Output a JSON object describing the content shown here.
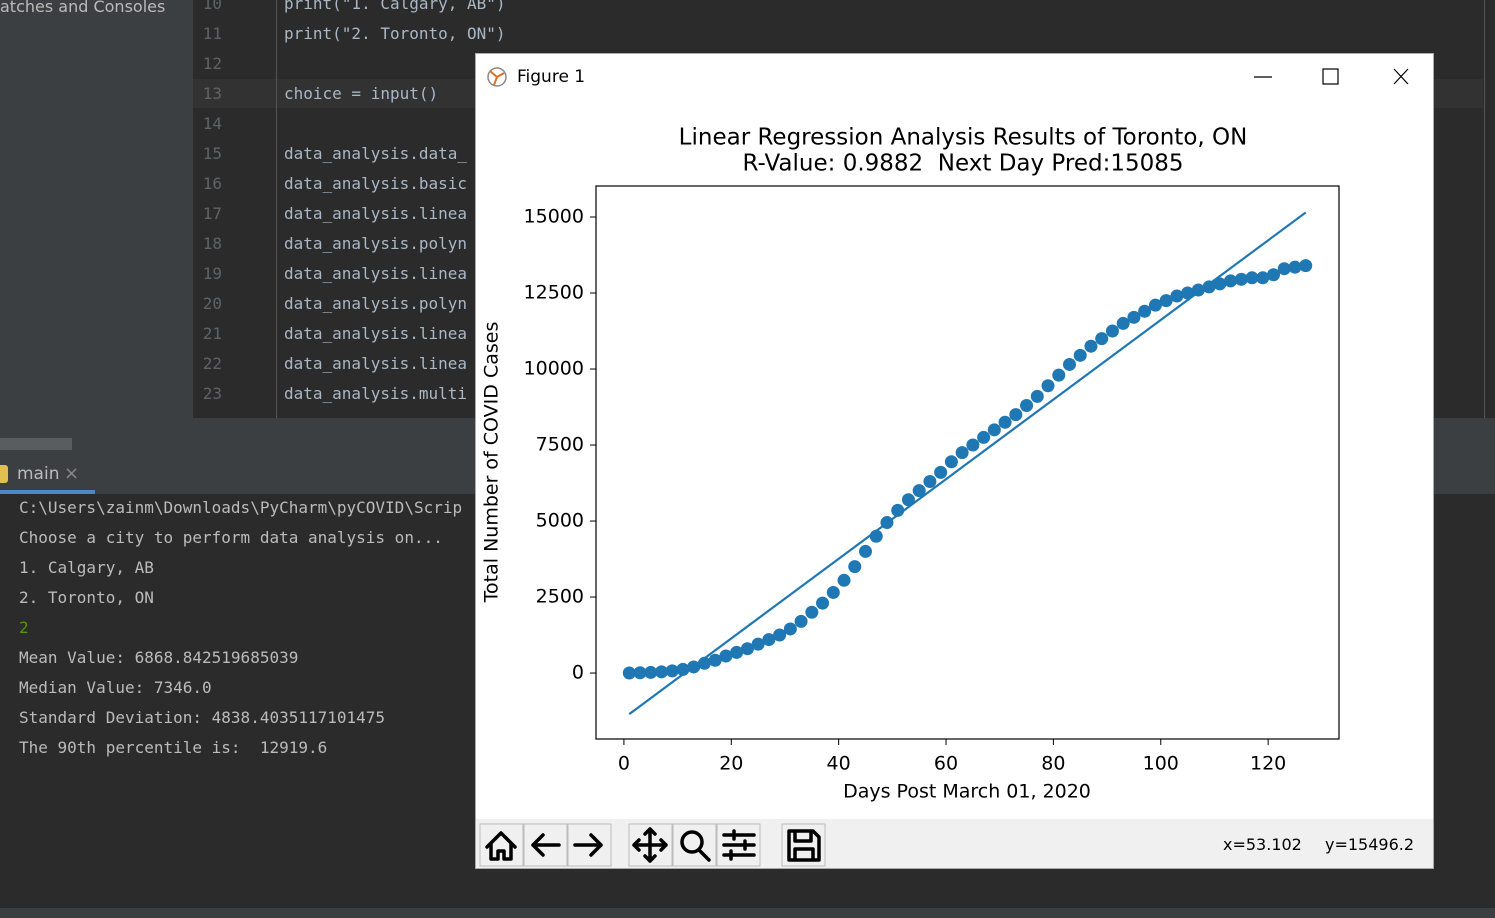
{
  "ide": {
    "sidebar_title": "atches and Consoles",
    "editor_lines": [
      {
        "num": "10",
        "code": "print(\"1. Calgary, AB\")"
      },
      {
        "num": "11",
        "code": "print(\"2. Toronto, ON\")"
      },
      {
        "num": "12",
        "code": ""
      },
      {
        "num": "13",
        "code": "choice = input()"
      },
      {
        "num": "14",
        "code": ""
      },
      {
        "num": "15",
        "code": "data_analysis.data_"
      },
      {
        "num": "16",
        "code": "data_analysis.basic"
      },
      {
        "num": "17",
        "code": "data_analysis.linea"
      },
      {
        "num": "18",
        "code": "data_analysis.polyn"
      },
      {
        "num": "19",
        "code": "data_analysis.linea"
      },
      {
        "num": "20",
        "code": "data_analysis.polyn"
      },
      {
        "num": "21",
        "code": "data_analysis.linea"
      },
      {
        "num": "22",
        "code": "data_analysis.linea"
      },
      {
        "num": "23",
        "code": "data_analysis.multi"
      }
    ],
    "run_tab": "main",
    "console_lines": [
      "C:\\Users\\zainm\\Downloads\\PyCharm\\pyCOVID\\Scrip",
      "Choose a city to perform data analysis on...",
      "1. Calgary, AB",
      "2. Toronto, ON",
      "2",
      "Mean Value: 6868.842519685039",
      "Median Value: 7346.0",
      "Standard Deviation: 4838.4035117101475",
      "The 90th percentile is:  12919.6"
    ]
  },
  "window": {
    "title": "Figure 1",
    "coord_x": "x=53.102",
    "coord_y": "y=15496.2"
  },
  "chart_data": {
    "type": "scatter",
    "title": "Linear Regression Analysis Results of Toronto, ON",
    "subtitle": "R-Value: 0.9882  Next Day Pred:15085",
    "x_label": "Days Post March 01, 2020",
    "y_label": "Total Number of COVID Cases",
    "xlim": [
      -5.2,
      133.2
    ],
    "ylim": [
      -2170,
      16020
    ],
    "xticks": [
      0,
      20,
      40,
      60,
      80,
      100,
      120
    ],
    "yticks": [
      0,
      2500,
      5000,
      7500,
      10000,
      12500,
      15000
    ],
    "grid": false,
    "series": [
      {
        "type": "scatter",
        "color": "#1f77b4",
        "x": [
          1,
          3,
          5,
          7,
          9,
          11,
          13,
          15,
          17,
          19,
          21,
          23,
          25,
          27,
          29,
          31,
          33,
          35,
          37,
          39,
          41,
          43,
          45,
          47,
          49,
          51,
          53,
          55,
          57,
          59,
          61,
          63,
          65,
          67,
          69,
          71,
          73,
          75,
          77,
          79,
          81,
          83,
          85,
          87,
          89,
          91,
          93,
          95,
          97,
          99,
          101,
          103,
          105,
          107,
          109,
          111,
          113,
          115,
          117,
          119,
          121,
          123,
          125,
          127
        ],
        "values": [
          0,
          10,
          20,
          40,
          70,
          120,
          200,
          320,
          420,
          560,
          680,
          800,
          950,
          1100,
          1250,
          1450,
          1700,
          2000,
          2300,
          2650,
          3050,
          3500,
          4000,
          4500,
          4950,
          5350,
          5700,
          6000,
          6300,
          6600,
          6950,
          7250,
          7500,
          7750,
          8000,
          8250,
          8500,
          8800,
          9100,
          9450,
          9800,
          10150,
          10450,
          10750,
          11000,
          11250,
          11500,
          11700,
          11900,
          12100,
          12250,
          12400,
          12500,
          12600,
          12700,
          12800,
          12900,
          12950,
          13000,
          13000,
          13100,
          13300,
          13350,
          13400
        ]
      },
      {
        "type": "line",
        "color": "#1f77b4",
        "x": [
          1,
          127
        ],
        "values": [
          -1350,
          15150
        ]
      }
    ]
  }
}
